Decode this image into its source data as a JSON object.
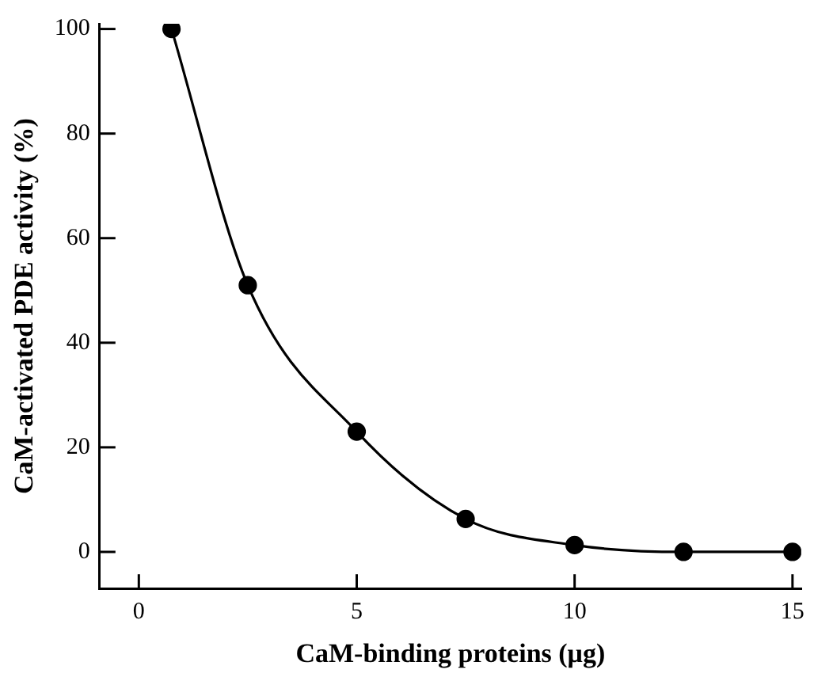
{
  "chart_data": {
    "type": "line",
    "xlabel": "CaM-binding proteins (μg)",
    "ylabel": "CaM-activated PDE activity (%)",
    "x": [
      0.75,
      2.5,
      5,
      7.5,
      10,
      12.5,
      15
    ],
    "series": [
      {
        "color": "#000000",
        "values": [
          100,
          51,
          23,
          6.3,
          1.3,
          0,
          0
        ]
      }
    ],
    "xlim": [
      -0.9,
      15.2
    ],
    "xticks": [
      0,
      5,
      10,
      15
    ],
    "ylim": [
      -7,
      101
    ],
    "yticks": [
      0,
      20,
      40,
      60,
      80,
      100
    ],
    "grid": false,
    "legend": false,
    "marker": "circle",
    "line_style": "solid"
  }
}
